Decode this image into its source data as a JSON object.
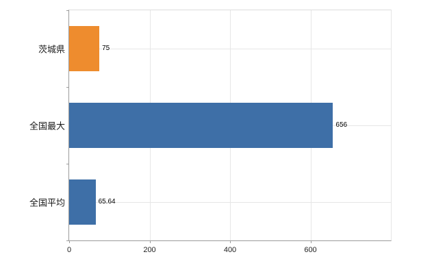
{
  "chart_data": {
    "type": "bar",
    "orientation": "horizontal",
    "title": "",
    "categories": [
      "茨城県",
      "全国最大",
      "全国平均"
    ],
    "series": [
      {
        "name": "value",
        "values": [
          75,
          656,
          65.64
        ]
      }
    ],
    "value_labels": [
      "75",
      "656",
      "65.64"
    ],
    "bar_colors": [
      "#ee8c2e",
      "#3e6fa7",
      "#3e6fa7"
    ],
    "xlim": [
      0,
      800
    ],
    "x_ticks": [
      0,
      200,
      400,
      600
    ],
    "grid": "vertical-and-category-light",
    "legend": "none",
    "background": "#ffffff",
    "axis_color": "#9b9b9b",
    "grid_color": "#e6e6e6"
  }
}
